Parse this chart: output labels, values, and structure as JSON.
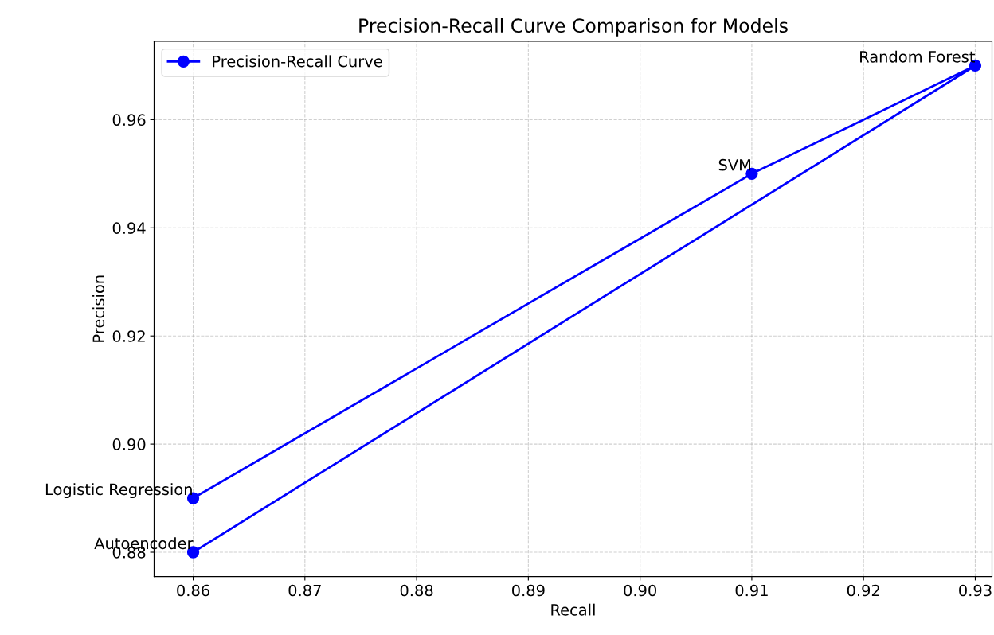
{
  "chart_data": {
    "type": "line",
    "title": "Precision-Recall Curve Comparison for Models",
    "xlabel": "Recall",
    "ylabel": "Precision",
    "x": [
      0.86,
      0.91,
      0.93,
      0.86
    ],
    "series": [
      {
        "name": "Precision-Recall Curve",
        "color": "#0000ff",
        "values": [
          0.89,
          0.95,
          0.97,
          0.88
        ]
      }
    ],
    "annotations": [
      {
        "text": "Logistic Regression",
        "x": 0.86,
        "y": 0.89
      },
      {
        "text": "SVM",
        "x": 0.91,
        "y": 0.95
      },
      {
        "text": "Random Forest",
        "x": 0.93,
        "y": 0.97
      },
      {
        "text": "Autoencoder",
        "x": 0.86,
        "y": 0.88
      }
    ],
    "xlim": [
      0.8565,
      0.9315
    ],
    "ylim": [
      0.8755,
      0.9745
    ],
    "xticks": [
      0.86,
      0.87,
      0.88,
      0.89,
      {
        "value": 0.9,
        "label": "0.90"
      },
      0.91,
      0.92,
      0.93
    ],
    "yticks": [
      0.88,
      {
        "value": 0.9,
        "label": "0.90"
      },
      0.92,
      0.94,
      0.96
    ],
    "grid": true,
    "legend": "top left",
    "marker": "circle",
    "line_style": "solid"
  }
}
